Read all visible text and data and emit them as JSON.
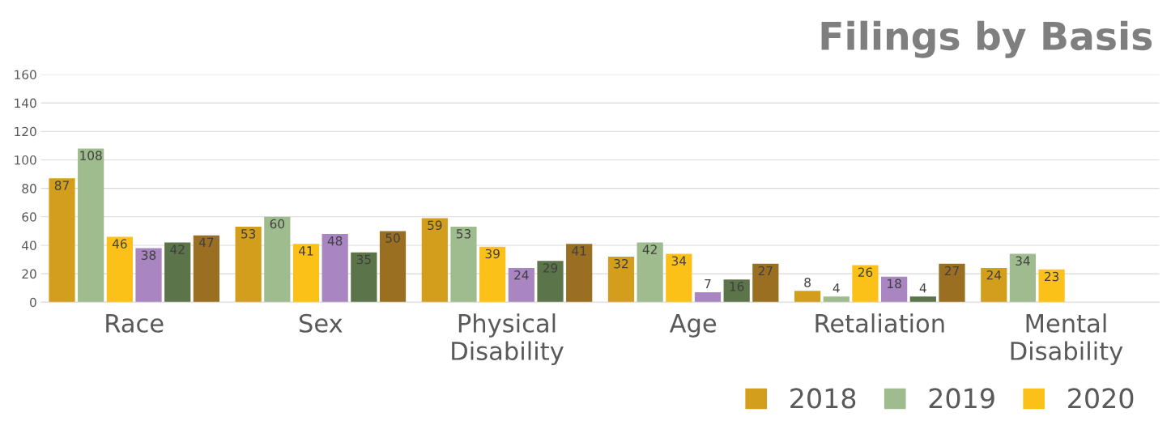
{
  "chart_data": {
    "type": "bar",
    "title": "Filings by Basis",
    "categories": [
      "Race",
      "Sex",
      "Physical Disability",
      "Age",
      "Retaliation",
      "Mental Disability"
    ],
    "series": [
      {
        "name": "2018",
        "color": "#d29e1c",
        "values": [
          87,
          53,
          59,
          32,
          8,
          24
        ]
      },
      {
        "name": "2019",
        "color": "#9fbc8e",
        "values": [
          108,
          60,
          53,
          42,
          4,
          34
        ]
      },
      {
        "name": "2020",
        "color": "#fbc118",
        "values": [
          46,
          41,
          39,
          34,
          26,
          23
        ]
      },
      {
        "color": "#a985c2",
        "values": [
          38,
          48,
          24,
          7,
          18,
          null
        ]
      },
      {
        "color": "#5c7449",
        "values": [
          42,
          35,
          29,
          16,
          4,
          null
        ]
      },
      {
        "color": "#9a6f22",
        "values": [
          47,
          50,
          41,
          27,
          27,
          null
        ]
      }
    ],
    "ylim": [
      0,
      160
    ],
    "yticks": [
      0,
      20,
      40,
      60,
      80,
      100,
      120,
      140,
      160
    ],
    "grid": "y",
    "legend": "bottom right",
    "data_labels": true
  }
}
